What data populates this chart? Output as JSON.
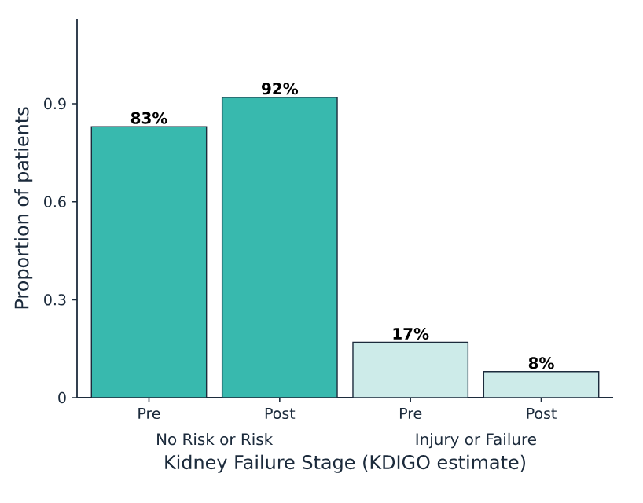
{
  "chart_data": {
    "type": "bar",
    "categories": [
      "Pre",
      "Post",
      "Pre",
      "Post"
    ],
    "values": [
      0.83,
      0.92,
      0.17,
      0.08
    ],
    "colors": [
      "#38b9ae",
      "#38b9ae",
      "#cdebe9",
      "#cdebe9"
    ],
    "value_labels": [
      "83%",
      "92%",
      "17%",
      "8%"
    ],
    "ylim": [
      0,
      1.16
    ],
    "yticks": [
      0,
      0.3,
      0.6,
      0.9
    ],
    "ylabel": "Proportion of patients",
    "xlabel": "Kidney Failure Stage (KDIGO estimate)",
    "annotations": [
      "No Risk or Risk",
      "Injury or Failure"
    ]
  }
}
